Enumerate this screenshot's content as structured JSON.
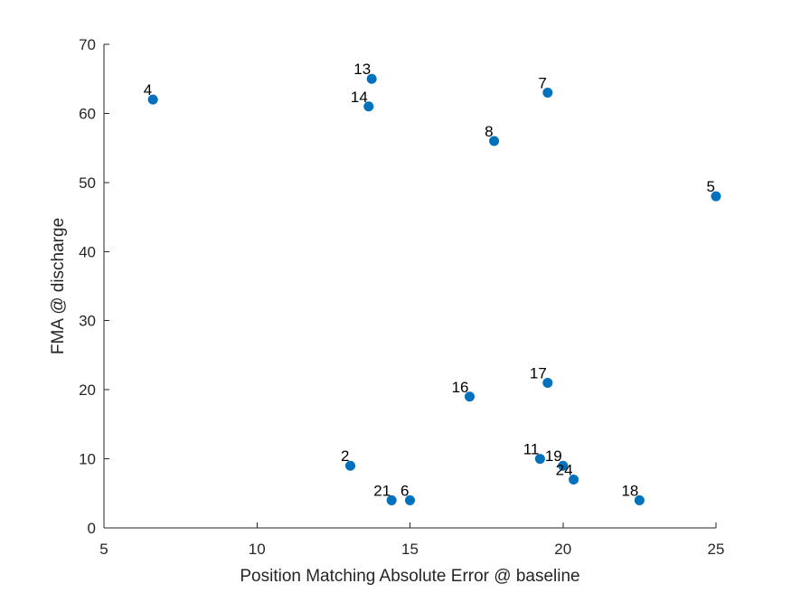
{
  "chart_data": {
    "type": "scatter",
    "title": "",
    "xlabel": "Position Matching Absolute Error @ baseline",
    "ylabel": "FMA @ discharge",
    "xlim": [
      5,
      25
    ],
    "ylim": [
      0,
      70
    ],
    "xticks": [
      5,
      10,
      15,
      20,
      25
    ],
    "yticks": [
      0,
      10,
      20,
      30,
      40,
      50,
      60,
      70
    ],
    "grid": false,
    "marker_color": "#0072BD",
    "points": [
      {
        "label": "4",
        "x": 6.6,
        "y": 62
      },
      {
        "label": "13",
        "x": 13.75,
        "y": 65
      },
      {
        "label": "14",
        "x": 13.65,
        "y": 61
      },
      {
        "label": "7",
        "x": 19.5,
        "y": 63
      },
      {
        "label": "8",
        "x": 17.75,
        "y": 56
      },
      {
        "label": "5",
        "x": 25.0,
        "y": 48
      },
      {
        "label": "17",
        "x": 19.5,
        "y": 21
      },
      {
        "label": "16",
        "x": 16.95,
        "y": 19
      },
      {
        "label": "2",
        "x": 13.05,
        "y": 9
      },
      {
        "label": "11",
        "x": 19.25,
        "y": 10
      },
      {
        "label": "19",
        "x": 20.0,
        "y": 9
      },
      {
        "label": "24",
        "x": 20.35,
        "y": 7
      },
      {
        "label": "21",
        "x": 14.4,
        "y": 4
      },
      {
        "label": "6",
        "x": 15.0,
        "y": 4
      },
      {
        "label": "18",
        "x": 22.5,
        "y": 4
      }
    ]
  }
}
